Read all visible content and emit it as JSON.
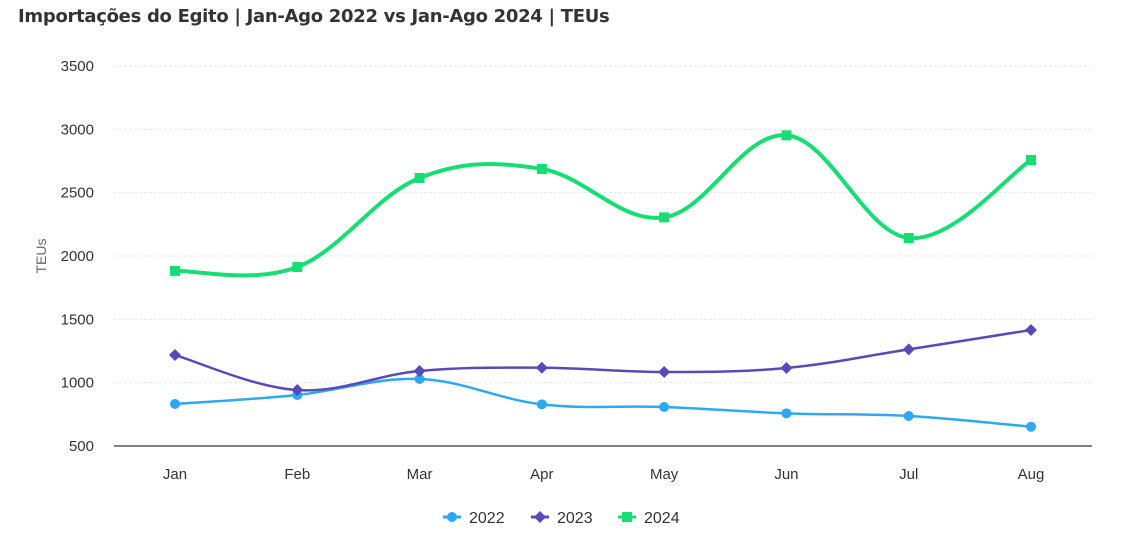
{
  "chart_data": {
    "type": "line",
    "title": "Importações do Egito | Jan-Ago 2022 vs Jan-Ago 2024 | TEUs",
    "xlabel": "",
    "ylabel": "TEUs",
    "categories": [
      "Jan",
      "Feb",
      "Mar",
      "Apr",
      "May",
      "Jun",
      "Jul",
      "Aug"
    ],
    "y_ticks": [
      "500",
      "1000",
      "1500",
      "2000",
      "2500",
      "3000",
      "3500"
    ],
    "ylim": [
      500,
      3500
    ],
    "grid": true,
    "legend_position": "bottom-center",
    "series": [
      {
        "name": "2022",
        "color": "#2fa8f2",
        "marker": "circle",
        "values": [
          832,
          903,
          1029,
          829,
          808,
          758,
          737,
          652
        ]
      },
      {
        "name": "2023",
        "color": "#5a49b8",
        "marker": "diamond",
        "values": [
          1218,
          942,
          1092,
          1118,
          1084,
          1116,
          1263,
          1416
        ]
      },
      {
        "name": "2024",
        "color": "#16de72",
        "marker": "square",
        "values": [
          1882,
          1913,
          2616,
          2687,
          2305,
          2953,
          2142,
          2758
        ]
      }
    ]
  }
}
